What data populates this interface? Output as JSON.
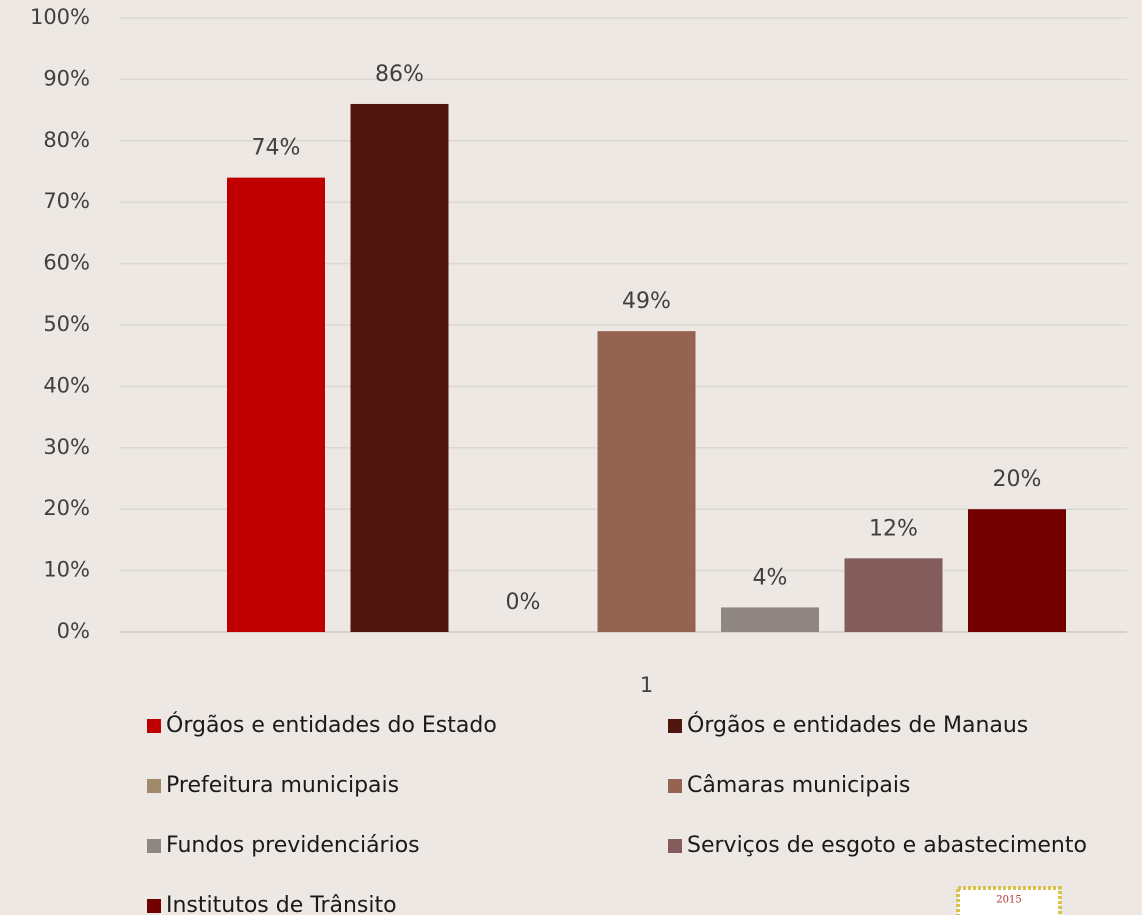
{
  "chart_data": {
    "type": "bar",
    "categories": [
      "1"
    ],
    "series": [
      {
        "name": "Órgãos e entidades do Estado",
        "color": "#c00000",
        "values": [
          74
        ],
        "value_labels": [
          "74%"
        ]
      },
      {
        "name": "Órgãos e entidades de Manaus",
        "color": "#4f1610",
        "values": [
          86
        ],
        "value_labels": [
          "86%"
        ]
      },
      {
        "name": "Prefeitura municipais",
        "color": "#a08a6a",
        "values": [
          0
        ],
        "value_labels": [
          "0%"
        ]
      },
      {
        "name": "Câmaras municipais",
        "color": "#956352",
        "values": [
          49
        ],
        "value_labels": [
          "49%"
        ]
      },
      {
        "name": "Fundos previdenciários",
        "color": "#8f8583",
        "values": [
          4
        ],
        "value_labels": [
          "4%"
        ]
      },
      {
        "name": "Serviços de esgoto e abastecimento",
        "color": "#845c5c",
        "values": [
          12
        ],
        "value_labels": [
          "12%"
        ]
      },
      {
        "name": "Institutos de Trânsito",
        "color": "#720000",
        "values": [
          20
        ],
        "value_labels": [
          "20%"
        ]
      }
    ],
    "ylim": [
      0,
      100
    ],
    "yticks": [
      {
        "value": 0,
        "label": "0%"
      },
      {
        "value": 10,
        "label": "10%"
      },
      {
        "value": 20,
        "label": "20%"
      },
      {
        "value": 30,
        "label": "30%"
      },
      {
        "value": 40,
        "label": "40%"
      },
      {
        "value": 50,
        "label": "50%"
      },
      {
        "value": 60,
        "label": "60%"
      },
      {
        "value": 70,
        "label": "70%"
      },
      {
        "value": 80,
        "label": "80%"
      },
      {
        "value": 90,
        "label": "90%"
      },
      {
        "value": 100,
        "label": "100%"
      }
    ],
    "grid": true,
    "legend": "bottom",
    "logo_text": "2015"
  }
}
